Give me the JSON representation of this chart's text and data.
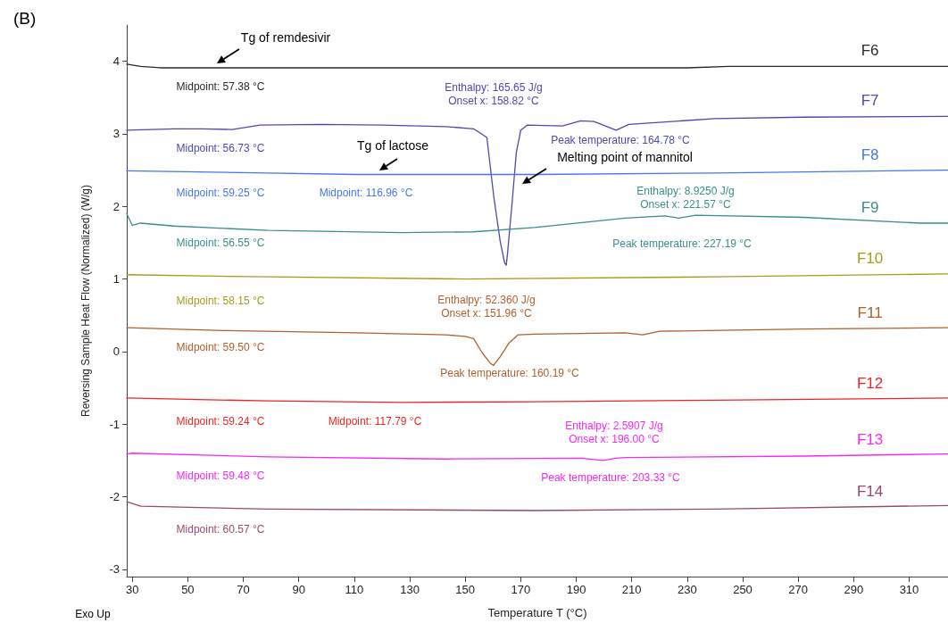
{
  "chart_data": {
    "type": "line",
    "title": "(B)",
    "xlabel": "Temperature T (°C)",
    "ylabel": "Reversing Sample Heat Flow (Normalized) (W/g)",
    "xlim": [
      28,
      324
    ],
    "xticks": [
      30,
      50,
      70,
      90,
      110,
      130,
      150,
      170,
      190,
      210,
      230,
      250,
      270,
      290,
      310
    ],
    "ylim": [
      -3.1,
      4.5
    ],
    "yticks": [
      -3,
      -2,
      -1,
      0,
      1,
      2,
      3,
      4
    ],
    "grid": false,
    "legend": false,
    "marker": "none",
    "line_style": "solid",
    "series": [
      {
        "name": "F6",
        "color": "#2a2a2a",
        "x": [
          28,
          33,
          40,
          60,
          100,
          150,
          200,
          230,
          245,
          280,
          324
        ],
        "values": [
          3.96,
          3.93,
          3.91,
          3.91,
          3.91,
          3.91,
          3.91,
          3.91,
          3.93,
          3.93,
          3.93
        ]
      },
      {
        "name": "F7",
        "color": "#4a4ab0",
        "x": [
          28,
          45,
          55,
          66,
          76,
          98,
          120,
          143,
          153,
          157.8,
          160.3,
          162.6,
          164.2,
          164.78,
          165.2,
          166.8,
          168.4,
          170,
          172.3,
          185,
          191.6,
          196.4,
          204.4,
          209,
          240,
          272,
          324
        ],
        "values": [
          3.05,
          3.07,
          3.07,
          3.06,
          3.12,
          3.13,
          3.12,
          3.1,
          3.07,
          2.95,
          2.13,
          1.52,
          1.22,
          1.19,
          1.34,
          2.01,
          2.74,
          3.05,
          3.12,
          3.11,
          3.18,
          3.17,
          3.05,
          3.13,
          3.21,
          3.23,
          3.24
        ]
      },
      {
        "name": "F8",
        "color": "#4477ee",
        "x": [
          28,
          79,
          111,
          175,
          240,
          324
        ],
        "values": [
          2.49,
          2.46,
          2.44,
          2.44,
          2.46,
          2.5
        ]
      },
      {
        "name": "F9",
        "color": "#3a8f8a",
        "x": [
          28,
          30,
          33,
          45,
          79,
          127,
          153,
          175,
          207.6,
          222,
          227,
          233,
          272,
          314,
          324
        ],
        "values": [
          1.9,
          1.74,
          1.77,
          1.73,
          1.67,
          1.64,
          1.65,
          1.71,
          1.84,
          1.87,
          1.84,
          1.88,
          1.85,
          1.77,
          1.77
        ]
      },
      {
        "name": "F10",
        "color": "#a39d1c",
        "x": [
          28,
          60,
          79,
          150,
          240,
          324
        ],
        "values": [
          1.06,
          1.04,
          1.03,
          1.0,
          1.03,
          1.07
        ]
      },
      {
        "name": "F11",
        "color": "#b0602c",
        "x": [
          28,
          63,
          111,
          143,
          150,
          153,
          156,
          159,
          160.19,
          162.6,
          165.8,
          169,
          175,
          207.6,
          214,
          220,
          272,
          324
        ],
        "values": [
          0.33,
          0.29,
          0.26,
          0.23,
          0.21,
          0.18,
          -0.01,
          -0.16,
          -0.19,
          -0.07,
          0.12,
          0.23,
          0.24,
          0.26,
          0.23,
          0.28,
          0.31,
          0.33
        ]
      },
      {
        "name": "F12",
        "color": "#f02424",
        "x": [
          28,
          79,
          127,
          175,
          240,
          324
        ],
        "values": [
          -0.64,
          -0.68,
          -0.7,
          -0.69,
          -0.67,
          -0.64
        ]
      },
      {
        "name": "F13",
        "color": "#f52af5",
        "x": [
          28,
          30,
          79,
          143,
          192,
          199.6,
          204.4,
          207.6,
          272,
          324
        ],
        "values": [
          -1.41,
          -1.4,
          -1.45,
          -1.48,
          -1.47,
          -1.5,
          -1.47,
          -1.46,
          -1.44,
          -1.41
        ]
      },
      {
        "name": "F14",
        "color": "#9b4770",
        "x": [
          28,
          33,
          79,
          175,
          240,
          324
        ],
        "values": [
          -2.07,
          -2.13,
          -2.17,
          -2.19,
          -2.17,
          -2.12
        ]
      }
    ],
    "annotations": [
      "Tg of remdesivir",
      "Midpoint: 57.38 °C",
      "Enthalpy: 165.65 J/g\nOnset x: 158.82 °C",
      "Peak temperature: 164.78 °C",
      "Midpoint: 56.73 °C",
      "Tg of lactose",
      "Melting point of mannitol",
      "Midpoint: 59.25 °C",
      "Midpoint: 116.96 °C",
      "Enthalpy: 8.9250 J/g\nOnset x: 221.57 °C",
      "Peak temperature: 227.19 °C",
      "Midpoint: 56.55 °C",
      "Midpoint: 58.15 °C",
      "Enthalpy: 52.360 J/g\nOnset x: 151.96 °C",
      "Peak temperature: 160.19 °C",
      "Midpoint: 59.50 °C",
      "Midpoint: 59.24 °C",
      "Midpoint: 117.79 °C",
      "Enthalpy: 2.5907 J/g\nOnset x: 196.00 °C",
      "Peak temperature: 203.33 °C",
      "Midpoint: 59.48 °C",
      "Midpoint: 60.57 °C",
      "Exo Up"
    ]
  }
}
